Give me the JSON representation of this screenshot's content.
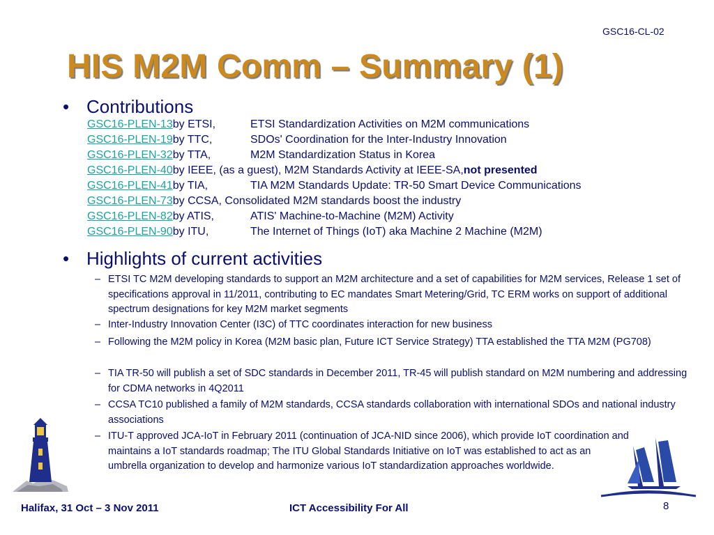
{
  "header": {
    "doc_id": "GSC16-CL-02",
    "title": "HIS M2M Comm – Summary (1)"
  },
  "contributions": {
    "bullet": "•",
    "heading": "Contributions",
    "rows": [
      {
        "link": "GSC16-PLEN-13",
        "org": " by ETSI,",
        "desc": "ETSI Standardization Activities on M2M communications"
      },
      {
        "link": "GSC16-PLEN-19",
        "org": " by TTC,",
        "desc": "SDOs' Coordination for the Inter-Industry Innovation"
      },
      {
        "link": "GSC16-PLEN-32",
        "org": " by TTA,",
        "desc": "M2M Standardization Status in Korea"
      },
      {
        "link": "GSC16-PLEN-40",
        "org": " by IEEE, (as a guest), M2M Standards Activity at IEEE-SA, ",
        "desc": "",
        "bold": "not presented"
      },
      {
        "link": "GSC16-PLEN-41",
        "org": " by TIA,",
        "desc": "TIA M2M Standards Update: TR-50 Smart Device Communications"
      },
      {
        "link": "GSC16-PLEN-73",
        "org": " by CCSA, Consolidated M2M standards boost the industry",
        "desc": ""
      },
      {
        "link": "GSC16-PLEN-82",
        "org": " by ATIS,",
        "desc": "ATIS' Machine-to-Machine (M2M) Activity"
      },
      {
        "link": "GSC16-PLEN-90",
        "org": " by ITU,",
        "desc": "The Internet of Things (IoT) aka Machine 2 Machine (M2M)"
      }
    ]
  },
  "highlights": {
    "bullet": "•",
    "heading": "Highlights of current activities",
    "dash": "–",
    "items": [
      "ETSI TC M2M developing standards to support an M2M architecture and a set of capabilities for M2M services, Release 1 set of specifications approval in 11/2011, contributing to EC mandates Smart Metering/Grid, TC ERM works on support of additional spectrum designations for key M2M market segments",
      "Inter-Industry Innovation Center (I3C) of TTC coordinates interaction for new business",
      "Following the M2M policy in Korea (M2M basic plan, Future ICT Service Strategy) TTA established the TTA M2M (PG708)",
      "TIA TR-50 will publish a set of SDC standards in December 2011, TR-45 will publish standard on M2M numbering and addressing for CDMA networks in 4Q2011",
      "CCSA TC10 published a family of M2M standards, CCSA standards collaboration with international SDOs and national industry associations",
      "ITU-T approved JCA-IoT in February 2011 (continuation of JCA-NID since 2006), which provide IoT coordination and maintains a IoT standards roadmap; The ITU Global Standards Initiative on IoT was established to act as an umbrella organization to develop and harmonize various IoT standardization approaches worldwide."
    ]
  },
  "footer": {
    "left": "Halifax, 31 Oct – 3 Nov 2011",
    "center": "ICT Accessibility For All",
    "page": "8"
  },
  "colors": {
    "title": "#cc8a1e",
    "text": "#0a0f6e",
    "link": "#1aa4a0"
  },
  "icons": {
    "left": "lighthouse-icon",
    "right": "sailing-ship-icon"
  }
}
